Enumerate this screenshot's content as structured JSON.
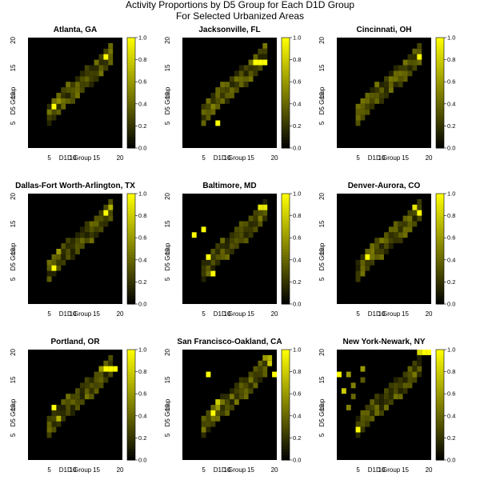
{
  "figure": {
    "title_lines": [
      "Activity Proportions by D5 Group for Each D1D Group",
      "For Selected Urbanized Areas"
    ]
  },
  "colors": {
    "background": "#000000",
    "low": "#000000",
    "high": "#ffff00"
  },
  "chart_data": [
    {
      "type": "heatmap",
      "title": "Atlanta, GA",
      "xlabel": "D1D Group",
      "ylabel": "D5 Group",
      "xlim": [
        0.5,
        20.5
      ],
      "ylim": [
        0.5,
        20.5
      ],
      "xticks": [
        5,
        10,
        15,
        20
      ],
      "yticks": [
        5,
        10,
        15,
        20
      ],
      "colorbar": {
        "range": [
          0,
          1
        ],
        "ticks": [
          "0.0",
          "0.2",
          "0.4",
          "0.6",
          "0.8",
          "1.0"
        ]
      },
      "cells": [
        [
          6,
          8,
          1.0
        ],
        [
          7,
          9,
          0.55
        ],
        [
          17,
          17,
          1.0
        ]
      ]
    },
    {
      "type": "heatmap",
      "title": "Jacksonville, FL",
      "xlabel": "D1D Group",
      "ylabel": "D5 Group",
      "xlim": [
        0.5,
        20.5
      ],
      "ylim": [
        0.5,
        20.5
      ],
      "xticks": [
        5,
        10,
        15,
        20
      ],
      "yticks": [
        5,
        10,
        15,
        20
      ],
      "colorbar": {
        "range": [
          0,
          1
        ],
        "ticks": [
          "0.0",
          "0.2",
          "0.4",
          "0.6",
          "0.8",
          "1.0"
        ]
      },
      "cells": [
        [
          8,
          5,
          1.0
        ],
        [
          7,
          8,
          0.5
        ],
        [
          7,
          7,
          0.4
        ],
        [
          16,
          16,
          1.0
        ],
        [
          17,
          16,
          1.0
        ],
        [
          18,
          16,
          1.0
        ]
      ]
    },
    {
      "type": "heatmap",
      "title": "Cincinnati, OH",
      "xlabel": "D1D Group",
      "ylabel": "D5 Group",
      "xlim": [
        0.5,
        20.5
      ],
      "ylim": [
        0.5,
        20.5
      ],
      "xticks": [
        5,
        10,
        15,
        20
      ],
      "yticks": [
        5,
        10,
        15,
        20
      ],
      "colorbar": {
        "range": [
          0,
          1
        ],
        "ticks": [
          "0.0",
          "0.2",
          "0.4",
          "0.6",
          "0.8",
          "1.0"
        ]
      },
      "cells": [
        [
          18,
          17,
          1.0
        ]
      ]
    },
    {
      "type": "heatmap",
      "title": "Dallas-Fort Worth-Arlington, TX",
      "xlabel": "D1D Group",
      "ylabel": "D5 Group",
      "xlim": [
        0.5,
        20.5
      ],
      "ylim": [
        0.5,
        20.5
      ],
      "xticks": [
        5,
        10,
        15,
        20
      ],
      "yticks": [
        5,
        10,
        15,
        20
      ],
      "colorbar": {
        "range": [
          0,
          1
        ],
        "ticks": [
          "0.0",
          "0.2",
          "0.4",
          "0.6",
          "0.8",
          "1.0"
        ]
      },
      "cells": [
        [
          6,
          7,
          1.0
        ],
        [
          7,
          10,
          0.6
        ],
        [
          17,
          17,
          1.0
        ],
        [
          18,
          18,
          0.7
        ]
      ]
    },
    {
      "type": "heatmap",
      "title": "Baltimore, MD",
      "xlabel": "D1D Group",
      "ylabel": "D5 Group",
      "xlim": [
        0.5,
        20.5
      ],
      "ylim": [
        0.5,
        20.5
      ],
      "xticks": [
        5,
        10,
        15,
        20
      ],
      "yticks": [
        5,
        10,
        15,
        20
      ],
      "colorbar": {
        "range": [
          0,
          1
        ],
        "ticks": [
          "0.0",
          "0.2",
          "0.4",
          "0.6",
          "0.8",
          "1.0"
        ]
      },
      "cells": [
        [
          3,
          13,
          1.0
        ],
        [
          5,
          14,
          1.0
        ],
        [
          6,
          9,
          1.0
        ],
        [
          7,
          6,
          1.0
        ],
        [
          17,
          18,
          0.9
        ],
        [
          18,
          18,
          0.9
        ]
      ]
    },
    {
      "type": "heatmap",
      "title": "Denver-Aurora, CO",
      "xlabel": "D1D Group",
      "ylabel": "D5 Group",
      "xlim": [
        0.5,
        20.5
      ],
      "ylim": [
        0.5,
        20.5
      ],
      "xticks": [
        5,
        10,
        15,
        20
      ],
      "yticks": [
        5,
        10,
        15,
        20
      ],
      "colorbar": {
        "range": [
          0,
          1
        ],
        "ticks": [
          "0.0",
          "0.2",
          "0.4",
          "0.6",
          "0.8",
          "1.0"
        ]
      },
      "cells": [
        [
          7,
          9,
          1.0
        ],
        [
          8,
          9,
          0.45
        ],
        [
          17,
          18,
          0.9
        ],
        [
          18,
          17,
          1.0
        ]
      ]
    },
    {
      "type": "heatmap",
      "title": "Portland, OR",
      "xlabel": "D1D Group",
      "ylabel": "D5 Group",
      "xlim": [
        0.5,
        20.5
      ],
      "ylim": [
        0.5,
        20.5
      ],
      "xticks": [
        5,
        10,
        15,
        20
      ],
      "yticks": [
        5,
        10,
        15,
        20
      ],
      "colorbar": {
        "range": [
          0,
          1
        ],
        "ticks": [
          "0.0",
          "0.2",
          "0.4",
          "0.6",
          "0.8",
          "1.0"
        ]
      },
      "cells": [
        [
          6,
          10,
          1.0
        ],
        [
          7,
          8,
          0.7
        ],
        [
          17,
          17,
          1.0
        ],
        [
          18,
          17,
          1.0
        ],
        [
          19,
          17,
          1.0
        ],
        [
          16,
          17,
          0.6
        ]
      ]
    },
    {
      "type": "heatmap",
      "title": "San Francisco-Oakland, CA",
      "xlabel": "D1D Group",
      "ylabel": "D5 Group",
      "xlim": [
        0.5,
        20.5
      ],
      "ylim": [
        0.5,
        20.5
      ],
      "xticks": [
        5,
        10,
        15,
        20
      ],
      "yticks": [
        5,
        10,
        15,
        20
      ],
      "colorbar": {
        "range": [
          0,
          1
        ],
        "ticks": [
          "0.0",
          "0.2",
          "0.4",
          "0.6",
          "0.8",
          "1.0"
        ]
      },
      "cells": [
        [
          6,
          16,
          1.0
        ],
        [
          7,
          9,
          1.0
        ],
        [
          8,
          11,
          0.8
        ],
        [
          8,
          10,
          0.6
        ],
        [
          20,
          16,
          1.0
        ],
        [
          19,
          18,
          0.8
        ],
        [
          19,
          19,
          0.7
        ],
        [
          18,
          19,
          0.6
        ]
      ]
    },
    {
      "type": "heatmap",
      "title": "New York-Newark, NY",
      "xlabel": "D1D Group",
      "ylabel": "D5 Group",
      "xlim": [
        0.5,
        20.5
      ],
      "ylim": [
        0.5,
        20.5
      ],
      "xticks": [
        5,
        10,
        15,
        20
      ],
      "yticks": [
        5,
        10,
        15,
        20
      ],
      "colorbar": {
        "range": [
          0,
          1
        ],
        "ticks": [
          "0.0",
          "0.2",
          "0.4",
          "0.6",
          "0.8",
          "1.0"
        ]
      },
      "cells": [
        [
          1,
          16,
          1.0
        ],
        [
          2,
          13,
          0.8
        ],
        [
          3,
          16,
          0.6
        ],
        [
          3,
          10,
          0.5
        ],
        [
          4,
          14,
          0.5
        ],
        [
          4,
          12,
          0.4
        ],
        [
          5,
          6,
          1.0
        ],
        [
          6,
          17,
          0.6
        ],
        [
          6,
          15,
          0.35
        ],
        [
          19,
          20,
          1.0
        ],
        [
          20,
          20,
          1.0
        ],
        [
          18,
          20,
          0.85
        ]
      ]
    }
  ]
}
